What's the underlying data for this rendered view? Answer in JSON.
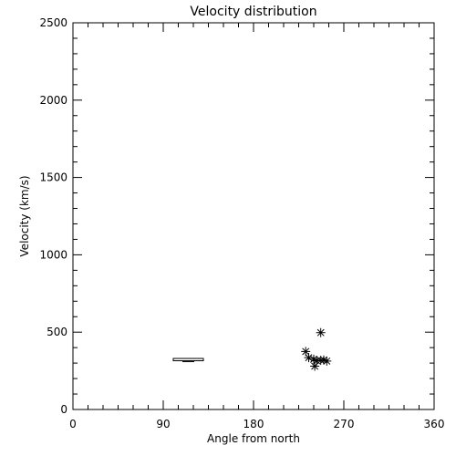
{
  "chart_data": {
    "type": "scatter",
    "title": "Velocity distribution",
    "xlabel": "Angle from north",
    "ylabel": "Velocity (km/s)",
    "xlim": [
      0,
      360
    ],
    "ylim": [
      0,
      2500
    ],
    "x_ticks": [
      0,
      90,
      180,
      270,
      360
    ],
    "x_tick_labels": [
      "0",
      "90",
      "180",
      "270",
      "360"
    ],
    "y_ticks": [
      0,
      500,
      1000,
      1500,
      2000,
      2500
    ],
    "y_tick_labels": [
      "0",
      "500",
      "1000",
      "1500",
      "2000",
      "2500"
    ],
    "grid": false,
    "legend": "none",
    "color": "#000000",
    "box": {
      "x_range": [
        100,
        130
      ],
      "y_range": [
        315,
        330
      ]
    },
    "series": [
      {
        "marker": "asterisk",
        "points": [
          {
            "x": 247,
            "y": 497
          },
          {
            "x": 232,
            "y": 375
          },
          {
            "x": 235,
            "y": 335
          },
          {
            "x": 240,
            "y": 325
          },
          {
            "x": 243,
            "y": 315
          },
          {
            "x": 247,
            "y": 318
          },
          {
            "x": 250,
            "y": 320
          },
          {
            "x": 253,
            "y": 313
          },
          {
            "x": 241,
            "y": 280
          }
        ]
      }
    ]
  }
}
